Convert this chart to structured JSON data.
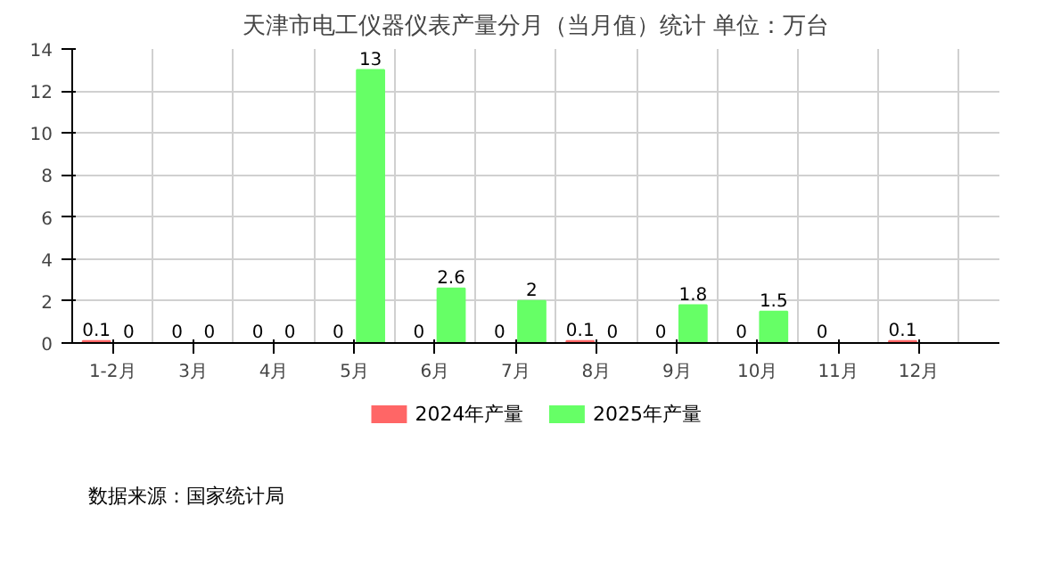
{
  "chart_data": {
    "type": "bar",
    "title": "天津市电工仪器仪表产量分月（当月值）统计 单位：万台",
    "categories": [
      "1-2月",
      "3月",
      "4月",
      "5月",
      "6月",
      "7月",
      "8月",
      "9月",
      "10月",
      "11月",
      "12月"
    ],
    "series": [
      {
        "name": "2024年产量",
        "color": "#ff6666",
        "values": [
          0.1,
          0,
          0,
          0,
          0,
          0,
          0.1,
          0,
          0,
          0,
          0.1
        ]
      },
      {
        "name": "2025年产量",
        "color": "#66ff66",
        "values": [
          0,
          0,
          0,
          13,
          2.6,
          2,
          0,
          1.8,
          1.5,
          null,
          null
        ]
      }
    ],
    "ylim": [
      0,
      14
    ],
    "yticks": [
      0,
      2,
      4,
      6,
      8,
      10,
      12,
      14
    ],
    "grid": true,
    "legend": "bottom",
    "data_labels": true,
    "annotations": [
      "数据来源：国家统计局"
    ]
  }
}
